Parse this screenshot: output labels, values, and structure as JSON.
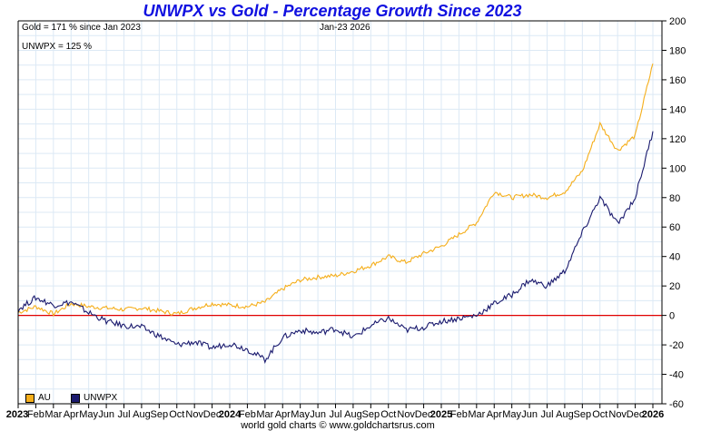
{
  "title": "UNWPX vs Gold - Percentage Growth Since 2023",
  "annotations": {
    "gold_summary": "Gold = 171 % since Jan 2023",
    "unwpx_summary": "UNWPX = 125 %",
    "date": "Jan-23  2026"
  },
  "footer": "world gold charts © www.goldchartsrus.com",
  "colors": {
    "gold": "#f5ae1a",
    "unwpx": "#1a1a6e",
    "zero_line": "#e00000",
    "grid": "#dce9f5",
    "title": "#1010e0"
  },
  "chart_data": {
    "type": "line",
    "title": "UNWPX vs Gold - Percentage Growth Since 2023",
    "xlabel": "",
    "ylabel": "",
    "ylim": [
      -60,
      200
    ],
    "yticks": [
      "200",
      "180",
      "160",
      "140",
      "120",
      "100",
      "80",
      "60",
      "40",
      "20",
      "0",
      "-20",
      "-40",
      "-60"
    ],
    "ytick_values": [
      200,
      180,
      160,
      140,
      120,
      100,
      80,
      60,
      40,
      20,
      0,
      -20,
      -40,
      -60
    ],
    "x_tick_labels": [
      "2023",
      "Feb",
      "Mar",
      "Apr",
      "May",
      "Jun",
      "Jul",
      "Aug",
      "Sep",
      "Oct",
      "Nov",
      "Dec",
      "2024",
      "Feb",
      "Mar",
      "Apr",
      "May",
      "Jun",
      "Jul",
      "Aug",
      "Sep",
      "Oct",
      "Nov",
      "Dec",
      "2025",
      "Feb",
      "Mar",
      "Apr",
      "May",
      "Jun",
      "Jul",
      "Aug",
      "Sep",
      "Oct",
      "Nov",
      "Dec",
      "2026"
    ],
    "grid": true,
    "legend_position": "bottom-left",
    "series": [
      {
        "name": "AU",
        "color": "#f5ae1a",
        "values": [
          2,
          6,
          1,
          8,
          6,
          5,
          4,
          5,
          3,
          1,
          5,
          8,
          7,
          6,
          9,
          18,
          24,
          26,
          27,
          30,
          34,
          40,
          36,
          42,
          47,
          55,
          63,
          84,
          80,
          82,
          80,
          84,
          98,
          130,
          112,
          122,
          171
        ]
      },
      {
        "name": "UNWPX",
        "color": "#1a1a6e",
        "values": [
          4,
          12,
          7,
          9,
          2,
          -4,
          -7,
          -8,
          -14,
          -20,
          -18,
          -22,
          -19,
          -23,
          -30,
          -15,
          -10,
          -12,
          -9,
          -15,
          -7,
          -2,
          -10,
          -8,
          -4,
          -2,
          0,
          8,
          14,
          24,
          20,
          30,
          56,
          80,
          62,
          80,
          125
        ]
      }
    ]
  }
}
